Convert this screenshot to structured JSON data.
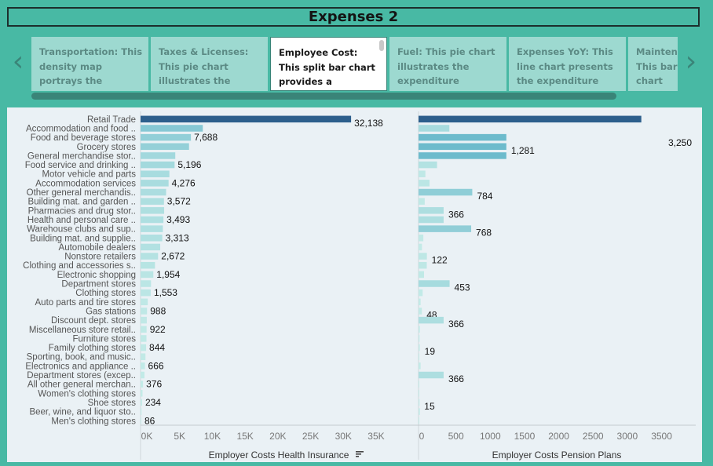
{
  "dashboard": {
    "title": "Expenses 2"
  },
  "navigation": {
    "prev_icon": "chevron-left-icon",
    "next_icon": "chevron-right-icon"
  },
  "story_points": [
    {
      "label": "Transportation: This density map portrays the expenditure on",
      "active": false
    },
    {
      "label": "Taxes & Licenses: This pie chart illustrates the proportion of",
      "active": false
    },
    {
      "label": "Employee Cost: This split bar chart provides a comparison",
      "active": true
    },
    {
      "label": "Fuel: This pie chart illustrates the expenditure allocated",
      "active": false
    },
    {
      "label": "Expenses YoY: This line chart presents the expenditure trends.",
      "active": false
    },
    {
      "label": "Maintenance: This bar chart illustrates expenses",
      "active": false
    }
  ],
  "colors": {
    "highlight_bar": "#2d5f8c",
    "bar_high": "#5fb3c8",
    "bar_low": "#c6ece8",
    "background": "#48b9a4",
    "panel": "#eaf1f5"
  },
  "chart_data": {
    "type": "bar",
    "categories": [
      "Retail Trade",
      "Accommodation and food ..",
      "Food and beverage stores",
      "Grocery stores",
      "General merchandise stor..",
      "Food service and drinking ..",
      "Motor vehicle and parts",
      "Accommodation services",
      "Other general merchandis..",
      "Building mat. and garden ..",
      "Pharmacies and drug stor..",
      "Health and personal care ..",
      "Warehouse clubs and sup..",
      "Building mat. and supplie..",
      "Automobile dealers",
      "Nonstore retailers",
      "Clothing and accessories s..",
      "Electronic shopping",
      "Department stores",
      "Clothing stores",
      "Auto parts and tire stores",
      "Gas stations",
      "Discount dept. stores",
      "Miscellaneous store retail..",
      "Furniture stores",
      "Family clothing stores",
      "Sporting, book, and music..",
      "Electronics and appliance ..",
      "Department stores (excep..",
      "All other general merchan..",
      "Women's clothing stores",
      "Shoe stores",
      "Beer, wine, and liquor sto..",
      "Men's clothing stores"
    ],
    "series": [
      {
        "name": "Employer Costs Health Insurance",
        "values": [
          32138,
          9500,
          7688,
          7400,
          5300,
          5196,
          4400,
          4276,
          3900,
          3572,
          3600,
          3493,
          3400,
          3313,
          3000,
          2672,
          2200,
          1954,
          1600,
          1553,
          1100,
          988,
          950,
          922,
          900,
          844,
          750,
          666,
          600,
          376,
          300,
          234,
          150,
          86
        ],
        "labels": [
          "32,138",
          "",
          "7,688",
          "",
          "",
          "5,196",
          "",
          "4,276",
          "",
          "3,572",
          "",
          "3,493",
          "",
          "3,313",
          "",
          "2,672",
          "",
          "1,954",
          "",
          "1,553",
          "",
          "988",
          "",
          "922",
          "",
          "844",
          "",
          "666",
          "",
          "376",
          "",
          "234",
          "",
          "86"
        ]
      },
      {
        "name": "Employer Costs Pension Plans",
        "values": [
          3250,
          450,
          1281,
          1281,
          1281,
          270,
          100,
          160,
          784,
          90,
          366,
          366,
          768,
          70,
          50,
          122,
          120,
          80,
          453,
          60,
          30,
          48,
          366,
          20,
          15,
          19,
          12,
          30,
          366,
          10,
          8,
          15,
          20,
          5
        ],
        "labels": [
          "",
          "",
          "",
          "1,281",
          "",
          "",
          "",
          "",
          "784",
          "",
          "366",
          "",
          "768",
          "",
          "",
          "122",
          "",
          "",
          "453",
          "",
          "",
          "48",
          "366",
          "",
          "",
          "19",
          "",
          "",
          "366",
          "",
          "",
          "15",
          "",
          ""
        ]
      }
    ],
    "annotations": [
      {
        "text": "3,250",
        "series": 1,
        "index": 0
      }
    ],
    "x_axes": [
      {
        "title": "Employer Costs Health Insurance",
        "ticks": [
          "0K",
          "5K",
          "10K",
          "15K",
          "20K",
          "25K",
          "30K",
          "35K"
        ],
        "xlim": [
          0,
          38000
        ],
        "sort_icon": "sort-descending-icon"
      },
      {
        "title": "Employer Costs Pension Plans",
        "ticks": [
          "0",
          "500",
          "1000",
          "1500",
          "2000",
          "2500",
          "3000",
          "3500"
        ],
        "xlim": [
          0,
          3700
        ]
      }
    ],
    "grid": false
  }
}
